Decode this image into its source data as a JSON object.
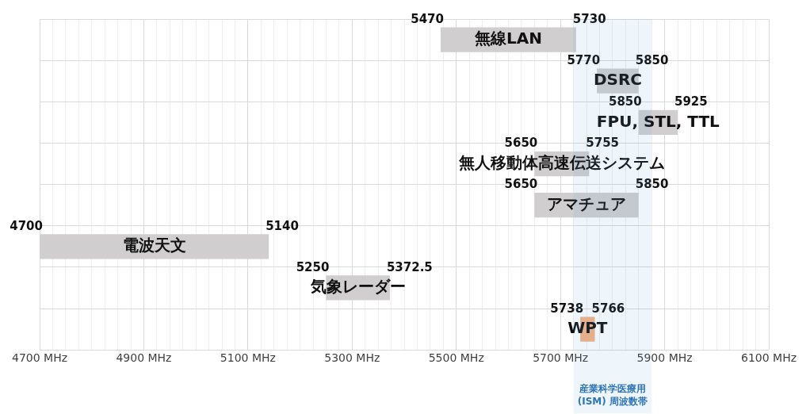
{
  "chart_data": {
    "type": "bar",
    "orientation": "horizontal",
    "categories": [
      "無線LAN",
      "DSRC",
      "FPU, STL, TTL",
      "無人移動体高速伝送システム",
      "アマチュア",
      "電波天文",
      "気象レーダー",
      "WPT"
    ],
    "base": [
      5470,
      5770,
      5850,
      5650,
      5650,
      4700,
      5250,
      5738
    ],
    "values": [
      260,
      80,
      75,
      105,
      200,
      440,
      122.5,
      28
    ],
    "colors": [
      "#d0cece",
      "#d0cece",
      "#d0cece",
      "#d0cece",
      "#d0cece",
      "#d0cece",
      "#d0cece",
      "#f4b183"
    ],
    "annotations": [
      {
        "text": "5470",
        "x": 5470,
        "y": "無線LAN"
      },
      {
        "text": "5730",
        "x": 5730,
        "y": "無線LAN"
      },
      {
        "text": "5770",
        "x": 5770,
        "y": "DSRC"
      },
      {
        "text": "5850",
        "x": 5850,
        "y": "DSRC"
      },
      {
        "text": "5850",
        "x": 5850,
        "y": "FPU, STL, TTL"
      },
      {
        "text": "5925",
        "x": 5925,
        "y": "FPU, STL, TTL"
      },
      {
        "text": "5650",
        "x": 5650,
        "y": "無人移動体高速伝送システム"
      },
      {
        "text": "5755",
        "x": 5755,
        "y": "無人移動体高速伝送システム"
      },
      {
        "text": "5650",
        "x": 5650,
        "y": "アマチュア"
      },
      {
        "text": "5850",
        "x": 5850,
        "y": "アマチュア"
      },
      {
        "text": "4700",
        "x": 4700,
        "y": "電波天文"
      },
      {
        "text": "5140",
        "x": 5140,
        "y": "電波天文"
      },
      {
        "text": "5250",
        "x": 5250,
        "y": "気象レーダー"
      },
      {
        "text": "5372.5",
        "x": 5372.5,
        "y": "気象レーダー"
      },
      {
        "text": "5738",
        "x": 5738,
        "y": "WPT"
      },
      {
        "text": "5766",
        "x": 5766,
        "y": "WPT"
      }
    ],
    "bands": [
      {
        "axis": "x",
        "from": 5725,
        "to": 5875,
        "label": "産業科学医療用\n(ISM) 周波数帯",
        "color": "#5b9bd5"
      }
    ],
    "xlim": [
      4700,
      6100
    ],
    "xticks": [
      {
        "value": 4700,
        "label": "4700 MHz"
      },
      {
        "value": 4725,
        "label": null
      },
      {
        "value": 4750,
        "label": null
      },
      {
        "value": 4775,
        "label": null
      },
      {
        "value": 4800,
        "label": null
      },
      {
        "value": 4825,
        "label": null
      },
      {
        "value": 4850,
        "label": null
      },
      {
        "value": 4875,
        "label": null
      },
      {
        "value": 4900,
        "label": "4900 MHz"
      },
      {
        "value": 4925,
        "label": null
      },
      {
        "value": 4950,
        "label": null
      },
      {
        "value": 4975,
        "label": null
      },
      {
        "value": 5000,
        "label": null
      },
      {
        "value": 5025,
        "label": null
      },
      {
        "value": 5050,
        "label": null
      },
      {
        "value": 5075,
        "label": null
      },
      {
        "value": 5100,
        "label": "5100 MHz"
      },
      {
        "value": 5125,
        "label": null
      },
      {
        "value": 5150,
        "label": null
      },
      {
        "value": 5175,
        "label": null
      },
      {
        "value": 5200,
        "label": null
      },
      {
        "value": 5225,
        "label": null
      },
      {
        "value": 5250,
        "label": null
      },
      {
        "value": 5275,
        "label": null
      },
      {
        "value": 5300,
        "label": "5300 MHz"
      },
      {
        "value": 5325,
        "label": null
      },
      {
        "value": 5350,
        "label": null
      },
      {
        "value": 5375,
        "label": null
      },
      {
        "value": 5400,
        "label": null
      },
      {
        "value": 5425,
        "label": null
      },
      {
        "value": 5450,
        "label": null
      },
      {
        "value": 5475,
        "label": null
      },
      {
        "value": 5500,
        "label": "5500 MHz"
      },
      {
        "value": 5525,
        "label": null
      },
      {
        "value": 5550,
        "label": null
      },
      {
        "value": 5575,
        "label": null
      },
      {
        "value": 5600,
        "label": null
      },
      {
        "value": 5625,
        "label": null
      },
      {
        "value": 5650,
        "label": null
      },
      {
        "value": 5675,
        "label": null
      },
      {
        "value": 5700,
        "label": "5700 MHz"
      },
      {
        "value": 5725,
        "label": null
      },
      {
        "value": 5750,
        "label": null
      },
      {
        "value": 5775,
        "label": null
      },
      {
        "value": 5800,
        "label": null
      },
      {
        "value": 5825,
        "label": null
      },
      {
        "value": 5850,
        "label": null
      },
      {
        "value": 5875,
        "label": null
      },
      {
        "value": 5900,
        "label": "5900 MHz"
      },
      {
        "value": 5925,
        "label": null
      },
      {
        "value": 5950,
        "label": null
      },
      {
        "value": 5975,
        "label": null
      },
      {
        "value": 6000,
        "label": null
      },
      {
        "value": 6025,
        "label": null
      },
      {
        "value": 6050,
        "label": null
      },
      {
        "value": 6075,
        "label": null
      },
      {
        "value": 6100,
        "label": "6100 MHz"
      }
    ],
    "grid": true,
    "tick_labels": "x"
  }
}
